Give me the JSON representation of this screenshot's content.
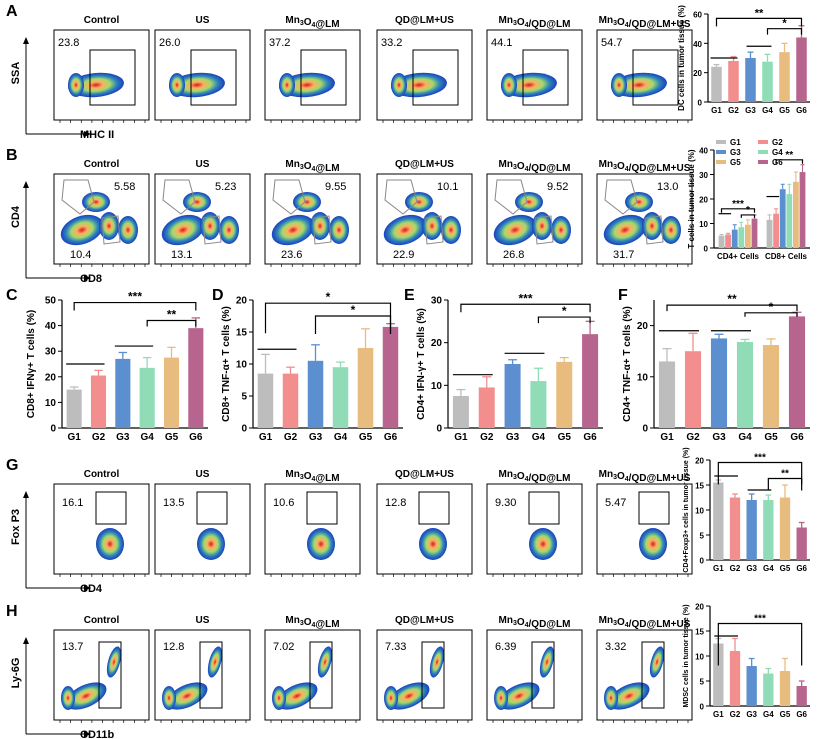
{
  "panel_letters": [
    "A",
    "B",
    "C",
    "D",
    "E",
    "F",
    "G",
    "H"
  ],
  "flow_rows": [
    {
      "letter": "A",
      "ylabel": "SSA",
      "xlabel": "MHC II",
      "gate": "upper",
      "values": [
        "23.8",
        "26.0",
        "37.2",
        "33.2",
        "44.1",
        "54.7"
      ]
    },
    {
      "letter": "B",
      "ylabel": "CD4",
      "xlabel": "CD8",
      "gate": "dual",
      "values": [
        [
          "5.58",
          "10.4"
        ],
        [
          "5.23",
          "13.1"
        ],
        [
          "9.55",
          "23.6"
        ],
        [
          "10.1",
          "22.9"
        ],
        [
          "9.52",
          "26.8"
        ],
        [
          "13.0",
          "31.7"
        ]
      ]
    },
    {
      "letter": "G",
      "ylabel": "Fox P3",
      "xlabel": "CD4",
      "gate": "upper",
      "values": [
        "16.1",
        "13.5",
        "10.6",
        "12.8",
        "9.30",
        "5.47"
      ]
    },
    {
      "letter": "H",
      "ylabel": "Ly-6G",
      "xlabel": "CD11b",
      "gate": "upper",
      "values": [
        "13.7",
        "12.8",
        "7.02",
        "7.33",
        "6.39",
        "3.32"
      ]
    }
  ],
  "sample_titles": [
    "Control",
    "US",
    "Mn3O4@LM",
    "QD@LM+US",
    "Mn3O4/QD@LM",
    "Mn3O4/QD@LM+US"
  ],
  "colors": {
    "G1": "#bdbdbd",
    "G2": "#f28e8e",
    "G3": "#5b8fd0",
    "G4": "#8fdcb6",
    "G5": "#e7bc7e",
    "G6": "#b7648f",
    "bracket": "#000000"
  },
  "chart_data": [
    {
      "id": "A",
      "type": "bar",
      "categories": [
        "G1",
        "G2",
        "G3",
        "G4",
        "G5",
        "G6"
      ],
      "values": [
        24,
        28,
        30,
        27.5,
        34,
        44
      ],
      "errors": [
        1.5,
        3,
        4,
        5,
        6,
        8
      ],
      "ylabel": "DC cells in tumor tissue (%)",
      "ylim": [
        0,
        60
      ],
      "yticks": [
        0,
        20,
        40,
        60
      ],
      "sig": [
        {
          "label": "**",
          "from": "G1",
          "to": "G6"
        },
        {
          "label": "*",
          "from": "G4",
          "to": "G6"
        }
      ]
    },
    {
      "id": "B",
      "type": "bar",
      "categories": [
        "CD4+ Cells",
        "CD8+ Cells"
      ],
      "series": [
        {
          "name": "G1",
          "values": [
            5,
            11.5
          ],
          "errors": [
            0.5,
            2
          ]
        },
        {
          "name": "G2",
          "values": [
            5.5,
            14
          ],
          "errors": [
            0.5,
            2
          ]
        },
        {
          "name": "G3",
          "values": [
            7.5,
            24
          ],
          "errors": [
            2,
            2
          ]
        },
        {
          "name": "G4",
          "values": [
            8.5,
            22
          ],
          "errors": [
            2,
            4
          ]
        },
        {
          "name": "G5",
          "values": [
            9.5,
            27
          ],
          "errors": [
            2,
            4
          ]
        },
        {
          "name": "G6",
          "values": [
            12,
            31
          ],
          "errors": [
            1.5,
            3
          ]
        }
      ],
      "ylabel": "T cells in tumor tissue (%)",
      "ylim": [
        0,
        40
      ],
      "yticks": [
        0,
        10,
        20,
        30,
        40
      ],
      "sig": [
        "***",
        "*",
        "**"
      ]
    },
    {
      "id": "C",
      "type": "bar",
      "categories": [
        "G1",
        "G2",
        "G3",
        "G4",
        "G5",
        "G6"
      ],
      "values": [
        15,
        20.5,
        27,
        23.5,
        27.5,
        39
      ],
      "errors": [
        1,
        2,
        2.5,
        4,
        4,
        4
      ],
      "ylabel": "CD8+ IFNγ+ T cells (%)",
      "ylim": [
        0,
        50
      ],
      "yticks": [
        0,
        10,
        20,
        30,
        40,
        50
      ],
      "sig": [
        "***",
        "**"
      ]
    },
    {
      "id": "D",
      "type": "bar",
      "categories": [
        "G1",
        "G2",
        "G3",
        "G4",
        "G5",
        "G6"
      ],
      "values": [
        8.5,
        8.5,
        10.5,
        9.5,
        12.5,
        15.8
      ],
      "errors": [
        3,
        1,
        2.5,
        0.8,
        3,
        0.5
      ],
      "ylabel": "CD8+ TNF-α+ T cells (%)",
      "ylim": [
        0,
        20
      ],
      "yticks": [
        0,
        5,
        10,
        15,
        20
      ],
      "sig": [
        "*",
        "*"
      ]
    },
    {
      "id": "E",
      "type": "bar",
      "categories": [
        "G1",
        "G2",
        "G3",
        "G4",
        "G5",
        "G6"
      ],
      "values": [
        7.5,
        9.5,
        15,
        11,
        15.5,
        22
      ],
      "errors": [
        1.5,
        2.5,
        1,
        3,
        1,
        3
      ],
      "ylabel": "CD4+ IFN-γ+ T cells (%)",
      "ylim": [
        0,
        30
      ],
      "yticks": [
        0,
        10,
        20,
        30
      ],
      "sig": [
        "***",
        "*"
      ]
    },
    {
      "id": "F",
      "type": "bar",
      "categories": [
        "G1",
        "G2",
        "G3",
        "G4",
        "G5",
        "G6"
      ],
      "values": [
        13,
        15,
        17.5,
        16.8,
        16.2,
        21.8
      ],
      "errors": [
        2.5,
        3.5,
        0.8,
        0.5,
        1.2,
        0.8
      ],
      "ylabel": "CD4+ TNF-α+ T cells (%)",
      "ylim": [
        0,
        25
      ],
      "yticks": [
        0,
        10,
        20
      ],
      "sig": [
        "**",
        "*"
      ]
    },
    {
      "id": "G",
      "type": "bar",
      "categories": [
        "G1",
        "G2",
        "G3",
        "G4",
        "G5",
        "G6"
      ],
      "values": [
        15.5,
        12.5,
        12,
        12,
        12.5,
        6.5
      ],
      "errors": [
        0.5,
        0.7,
        1.2,
        1,
        2.5,
        1
      ],
      "ylabel": "CD4+Foxp3+ cells in tumor tissue (%)",
      "ylim": [
        0,
        20
      ],
      "yticks": [
        0,
        5,
        10,
        15,
        20
      ],
      "sig": [
        "***",
        "**"
      ]
    },
    {
      "id": "H",
      "type": "bar",
      "categories": [
        "G1",
        "G2",
        "G3",
        "G4",
        "G5",
        "G6"
      ],
      "values": [
        12.5,
        11,
        8,
        6.5,
        7,
        4
      ],
      "errors": [
        1,
        2.5,
        1.5,
        1,
        2.5,
        1
      ],
      "ylabel": "MDSC cells in tumor tissue (%)",
      "ylim": [
        0,
        20
      ],
      "yticks": [
        0,
        5,
        10,
        15,
        20
      ],
      "sig": [
        "***"
      ]
    }
  ]
}
